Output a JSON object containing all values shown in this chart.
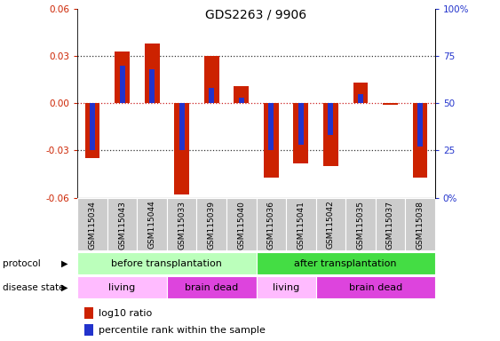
{
  "title": "GDS2263 / 9906",
  "samples": [
    "GSM115034",
    "GSM115043",
    "GSM115044",
    "GSM115033",
    "GSM115039",
    "GSM115040",
    "GSM115036",
    "GSM115041",
    "GSM115042",
    "GSM115035",
    "GSM115037",
    "GSM115038"
  ],
  "log10_ratio": [
    -0.035,
    0.033,
    0.038,
    -0.058,
    0.03,
    0.011,
    -0.047,
    -0.038,
    -0.04,
    0.013,
    -0.001,
    -0.047
  ],
  "percentile_rank": [
    25,
    70,
    68,
    25,
    58,
    53,
    25,
    28,
    33,
    55,
    50,
    27
  ],
  "ylim": [
    -0.06,
    0.06
  ],
  "yticks_left": [
    -0.06,
    -0.03,
    0.0,
    0.03,
    0.06
  ],
  "yticks_right": [
    0,
    25,
    50,
    75,
    100
  ],
  "yticks_right_labels": [
    "0%",
    "25",
    "50",
    "75",
    "100%"
  ],
  "bar_color_red": "#cc2200",
  "bar_color_blue": "#2233cc",
  "protocol_before_color": "#bbffbb",
  "protocol_after_color": "#44dd44",
  "disease_living_color": "#ffbbff",
  "disease_brain_color": "#dd44dd",
  "protocol_groups": [
    {
      "label": "before transplantation",
      "start": 0,
      "end": 6
    },
    {
      "label": "after transplantation",
      "start": 6,
      "end": 12
    }
  ],
  "disease_groups": [
    {
      "label": "living",
      "start": 0,
      "end": 3
    },
    {
      "label": "brain dead",
      "start": 3,
      "end": 6
    },
    {
      "label": "living",
      "start": 6,
      "end": 8
    },
    {
      "label": "brain dead",
      "start": 8,
      "end": 12
    }
  ],
  "legend_red_label": "log10 ratio",
  "legend_blue_label": "percentile rank within the sample",
  "xlabel_protocol": "protocol",
  "xlabel_disease": "disease state",
  "background_color": "#ffffff",
  "dotted_line_color": "#333333",
  "zero_line_color": "#cc2222",
  "tick_bg_color": "#cccccc",
  "bar_width": 0.5,
  "blue_bar_width": 0.18
}
